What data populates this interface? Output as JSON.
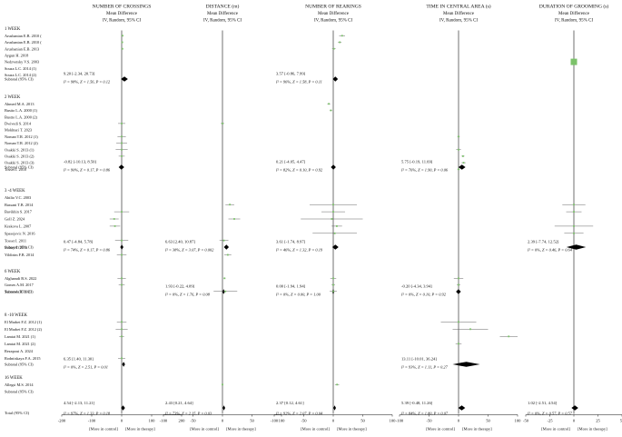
{
  "chart_data": {
    "type": "forest",
    "panels": [
      {
        "key": "crossings",
        "title": "NUMBER OF CROSSINGS",
        "subtitle": "Mean Difference",
        "method": "IV, Random, 95% CI",
        "xlim": [
          -200,
          200
        ],
        "ticks": [
          -200,
          -100,
          0,
          100,
          200
        ],
        "subtotals": [
          {
            "group": "1 WEEK",
            "md": 9.2,
            "lo": -2.34,
            "hi": 20.73,
            "ci_text": "9.20 [-2.34, 20.73]",
            "het_text": "I² = 98%, Z = 1.56, P = 0.12"
          },
          {
            "group": "2 WEEK",
            "md": -0.82,
            "lo": -10.13,
            "hi": 8.5,
            "ci_text": "-0.82 [-10.13, 8.50]",
            "het_text": "I² = 90%, Z = 0.17, P = 0.86"
          },
          {
            "group": "3 -4 WEEK",
            "md": 0.47,
            "lo": -4.84,
            "hi": 5.78,
            "ci_text": "0.47 [-4.84, 5.78]",
            "het_text": "I² = 74%, Z = 0.17, P = 0.86"
          },
          {
            "group": "8 -10 WEEK",
            "md": 6.35,
            "lo": 1.4,
            "hi": 11.3,
            "ci_text": "6.35 [1.40, 11.30]",
            "het_text": "I² = 0%, Z = 2.51, P = 0.01"
          }
        ],
        "total": {
          "md": 4.54,
          "lo": -2.13,
          "hi": 11.21,
          "ci_text": "4.54 [-2.13, 11.21]",
          "het_text": "I² = 97%, Z = 1.33, P = 0.18"
        }
      },
      {
        "key": "distance",
        "title": "DISTANCE (m)",
        "subtitle": "Mean Difference",
        "method": "IV, Random, 95% CI",
        "xlim": [
          -100,
          100
        ],
        "ticks": [
          -100,
          -50,
          0,
          50,
          100
        ],
        "subtotals": [
          {
            "group": "3 -4 WEEK",
            "md": 6.63,
            "lo": 2.4,
            "hi": 10.87,
            "ci_text": "6.63 [2.40, 10.87]",
            "het_text": "I² = 38%, Z = 3.07, P = 0.002"
          },
          {
            "group": "6 WEEK",
            "md": 1.93,
            "lo": -0.22,
            "hi": 4.09,
            "ci_text": "1.93 [-0.22, 4.09]",
            "het_text": "I² = 0%, Z = 1.76, P = 0.08"
          }
        ],
        "total": {
          "md": 2.43,
          "lo": 0.21,
          "hi": 4.64,
          "ci_text": "2.43 [0.21, 4.64]",
          "het_text": "I² = 73%, Z = 2.15, P = 0.03"
        }
      },
      {
        "key": "rearings",
        "title": "NUMBER OF REARINGS",
        "subtitle": "Mean Difference",
        "method": "IV, Random, 95% CI",
        "xlim": [
          -100,
          100
        ],
        "ticks": [
          -100,
          -50,
          0,
          50,
          100
        ],
        "subtotals": [
          {
            "group": "1 WEEK",
            "md": 3.57,
            "lo": -0.86,
            "hi": 7.99,
            "ci_text": "3.57 [-0.86, 7.99]",
            "het_text": "I² = 96%, Z = 1.58, P = 0.11"
          },
          {
            "group": "2 WEEK",
            "md": 0.21,
            "lo": -4.05,
            "hi": 4.47,
            "ci_text": "0.21 [-4.05, 4.47]",
            "het_text": "I² = 82%, Z = 0.10, P = 0.92"
          },
          {
            "group": "3 -4 WEEK",
            "md": 3.61,
            "lo": -1.74,
            "hi": 8.97,
            "ci_text": "3.61 [-1.74, 8.97]",
            "het_text": "I² = 46%, Z = 1.32, P = 0.19"
          },
          {
            "group": "6 WEEK",
            "md": 0.0,
            "lo": -1.94,
            "hi": 1.94,
            "ci_text": "0.00 [-1.94, 1.94]",
            "het_text": "I² = 0%, Z = 0.00, P = 1.00"
          }
        ],
        "total": {
          "md": 2.37,
          "lo": 0.12,
          "hi": 4.61,
          "ci_text": "2.37 [0.12, 4.61]",
          "het_text": "I² = 92%, Z = 2.07, P = 0.04"
        }
      },
      {
        "key": "central",
        "title": "TIME IN CENTRAL AREA (s)",
        "subtitle": "Mean Difference",
        "method": "IV, Random, 95% CI",
        "xlim": [
          -100,
          100
        ],
        "ticks": [
          -100,
          -50,
          0,
          50,
          100
        ],
        "subtotals": [
          {
            "group": "2 WEEK",
            "md": 5.75,
            "lo": -0.19,
            "hi": 11.69,
            "ci_text": "5.75 [-0.19, 11.69]",
            "het_text": "I² = 76%, Z = 1.90, P = 0.06"
          },
          {
            "group": "6 WEEK",
            "md": -0.2,
            "lo": -4.34,
            "hi": 3.94,
            "ci_text": "-0.20 [-4.34, 3.94]",
            "het_text": "I² = 0%, Z = 0.10, P = 0.92"
          },
          {
            "group": "8 -10 WEEK",
            "md": 13.11,
            "lo": -10.01,
            "hi": 36.24,
            "ci_text": "13.11 [-10.01, 36.24]",
            "het_text": "I² = 93%, Z = 1.11, P = 0.27"
          }
        ],
        "total": {
          "md": 5.39,
          "lo": -0.48,
          "hi": 11.26,
          "ci_text": "5.39 [-0.48, 11.26]",
          "het_text": "I² = 84%, Z = 1.80, P = 0.07"
        }
      },
      {
        "key": "grooming",
        "title": "DURATION OF GROOMING (s)",
        "subtitle": "Mean Difference",
        "method": "IV, Random, 95% CI",
        "xlim": [
          -50,
          50
        ],
        "ticks": [
          -50,
          -25,
          0,
          25,
          50
        ],
        "subtotals": [
          {
            "group": "3 -4 WEEK",
            "md": 2.39,
            "lo": -7.74,
            "hi": 12.52,
            "ci_text": "2.39 [-7.74, 12.52]",
            "het_text": "I² = 0%, Z = 0.46, P = 0.64"
          }
        ],
        "total": {
          "md": 1.02,
          "lo": -2.51,
          "hi": 4.54,
          "ci_text": "1.02 [-2.51, 4.54]",
          "het_text": "I² = 0%, Z = 0.57, P = 0.57"
        }
      }
    ],
    "groups": [
      {
        "label": "1 WEEK",
        "studies": [
          "Arushanian E.B. 2010 (",
          "Arushanian E.B. 2010 (",
          "Arushanian E.B. 2013",
          "Aygun H. 2018",
          "Nedzvetsky V.S. 2003",
          "Souza L.C. 2014 (1)",
          "Souza L.C. 2014 (2)"
        ]
      },
      {
        "label": "2 WEEK",
        "studies": [
          "Ahmed M.A. 2013",
          "Bustto L.A. 2000 (1)",
          "Bustto L.A. 2000 (2)",
          "Dwivedi S. 2014",
          "Mokhtari T. 2023",
          "Noman T.R. 2012 (1)",
          "Noman T.R. 2012 (2)",
          "Osakki S. 2013 (1)",
          "Osakki S. 2013 (2)",
          "Osakki S. 2013 (3)",
          "Tosset I. 2010"
        ]
      },
      {
        "label": "3 -4 WEEK",
        "studies": [
          "Abilio V.C. 2003",
          "Bassani T.B. 2014",
          "Bavikhin S. 2017",
          "Goll Z. 2024",
          "Krakova L. 2007",
          "Spasojevic N. 2016",
          "Tosset I. 2011",
          "Uchay T. 2013",
          "Yildirim F.B. 2014"
        ]
      },
      {
        "label": "6 WEEK",
        "studies": [
          "Alghamdi B.S. 2022",
          "Gomes A.M. 2017",
          "Tarasova R. 2021"
        ]
      },
      {
        "label": "8 -10 WEEK",
        "studies": [
          "El Mrabet F.Z. 2012 (1)",
          "El Mrabet F.Z. 2012 (2)",
          "Lamtai M. 2021 (1)",
          "Lamtai M. 2021 (2)",
          "Rezapoui A. 2024",
          "Rodnitskaya F.A. 2015"
        ]
      },
      {
        "label": "16 WEEK",
        "studies": [
          "Allegsi M.S. 2014"
        ]
      }
    ],
    "subtotal_label": "Subtotal (95% CI)",
    "total_label": "Total (95% CI)",
    "favours_left": "[More in control]",
    "favours_right": "[More in therapy]",
    "colors": {
      "study_marker": "#7cc26a",
      "diamond": "#000000",
      "axis": "#111111"
    }
  }
}
